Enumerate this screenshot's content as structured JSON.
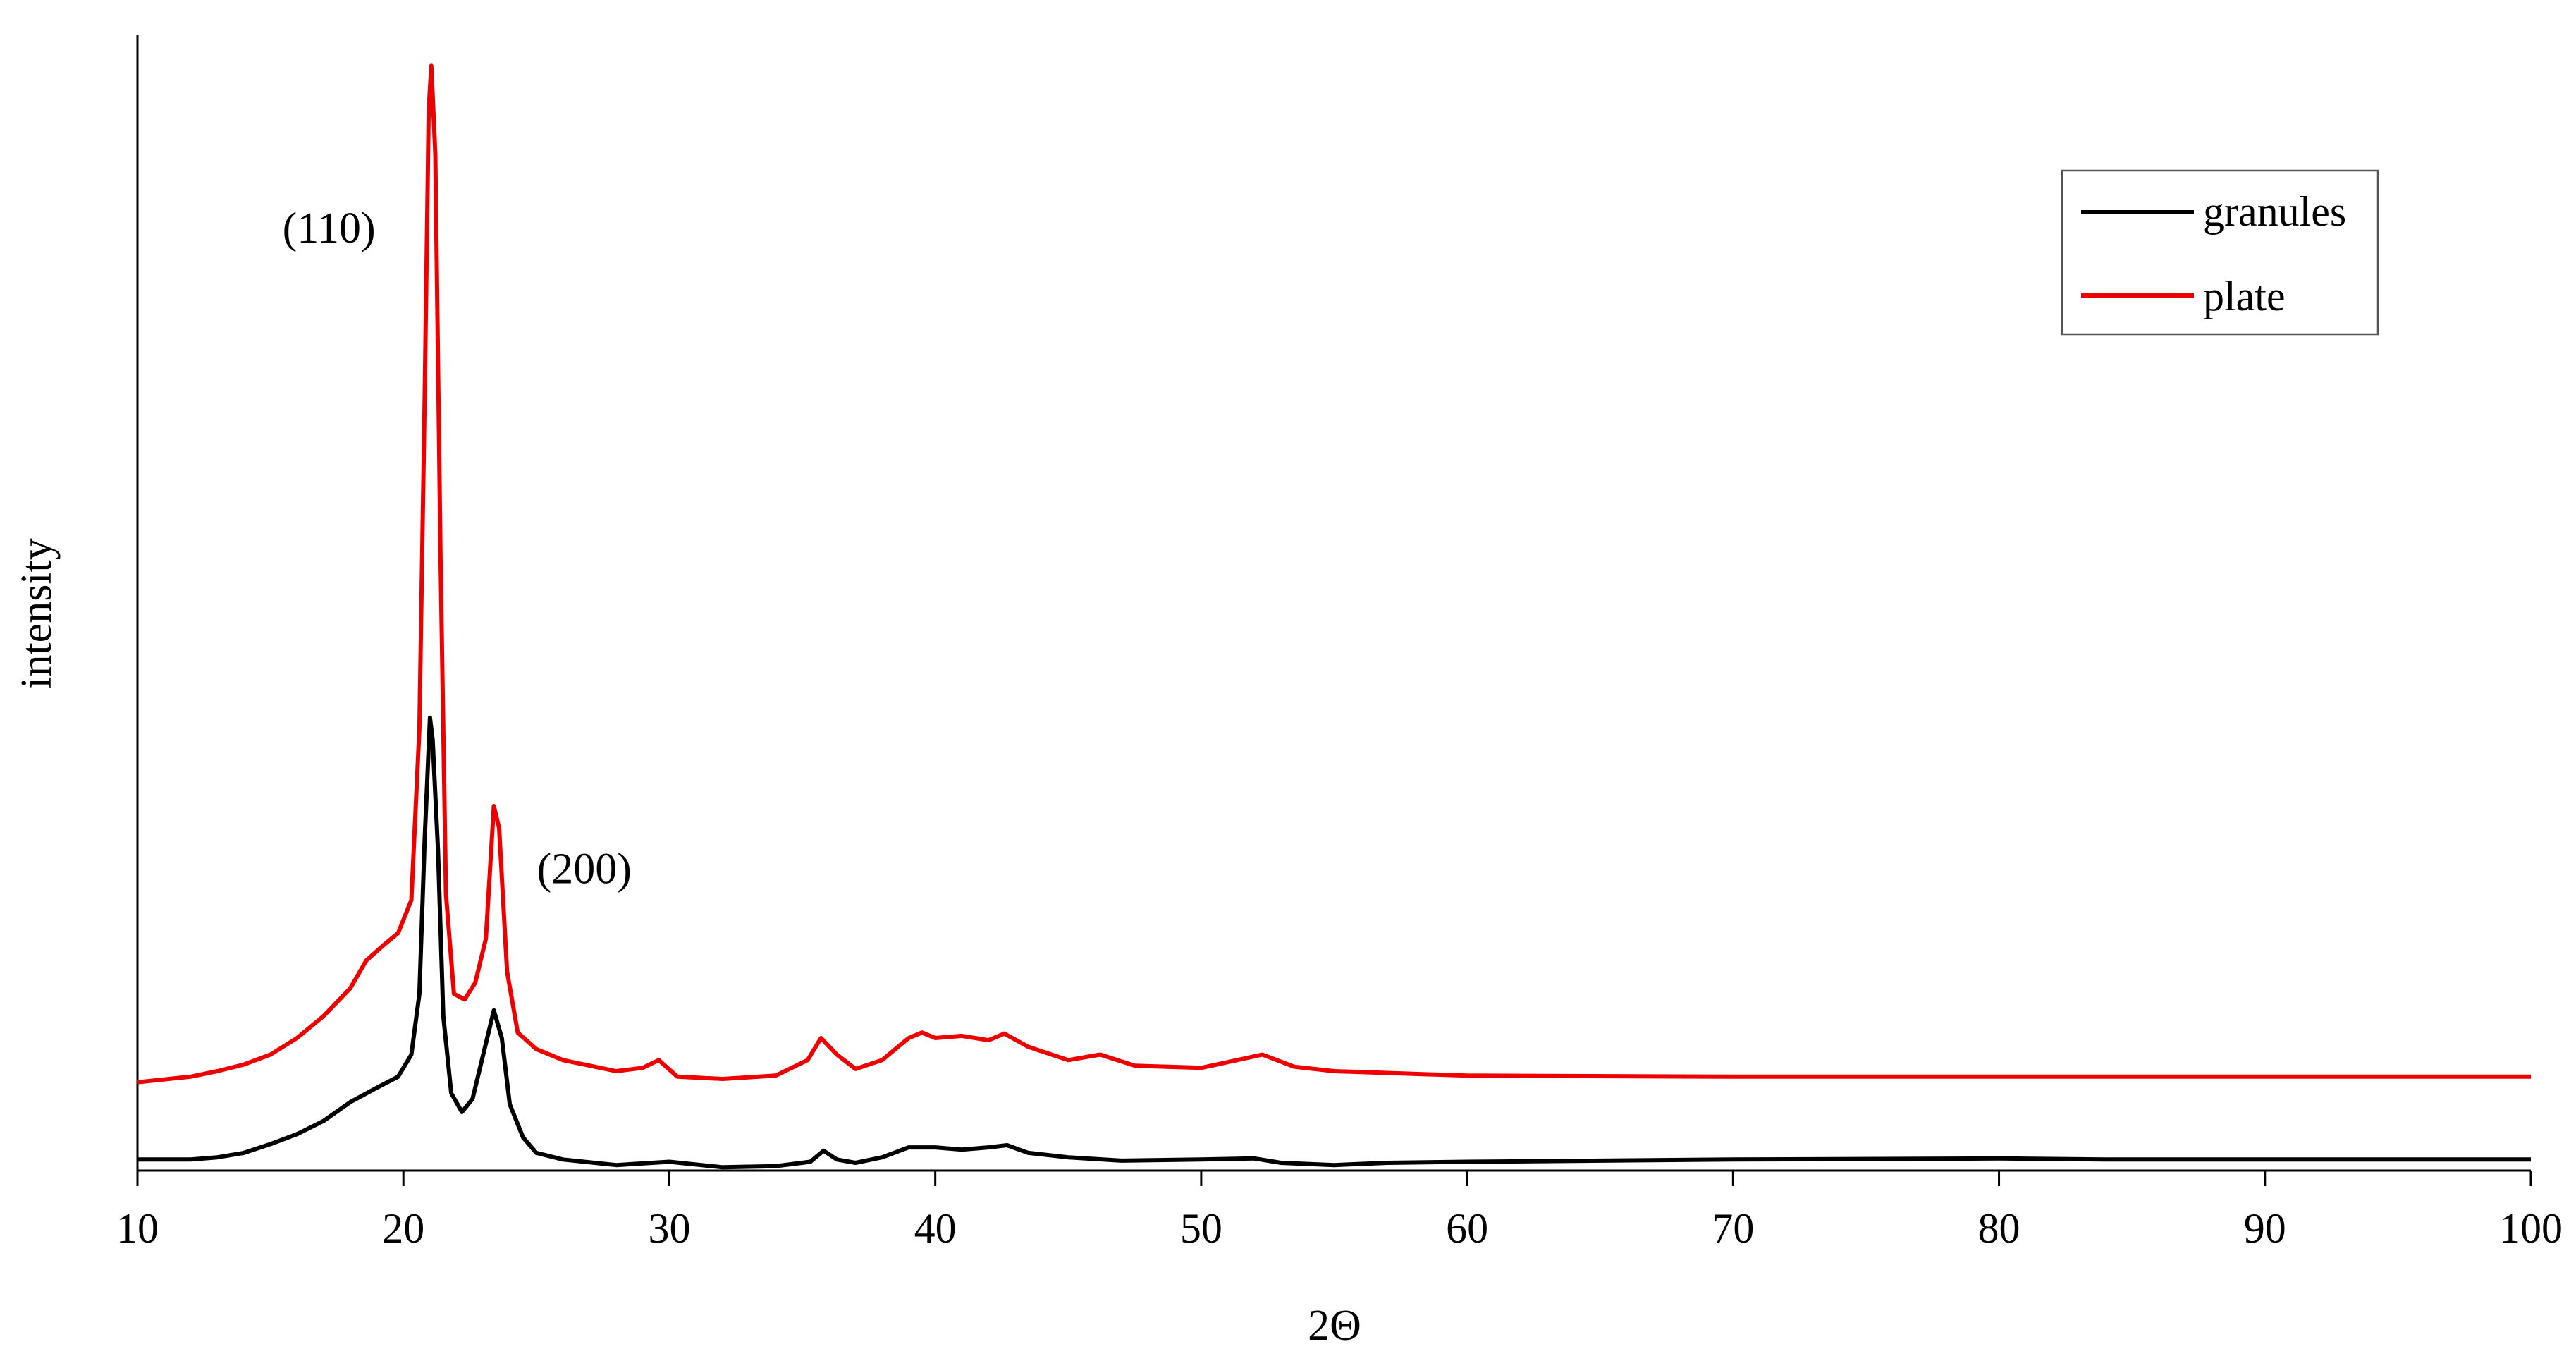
{
  "chart_data": {
    "type": "line",
    "title": "",
    "xlabel": "2Θ",
    "ylabel": "intensity",
    "xlim": [
      10,
      100
    ],
    "ylim": [
      0,
      105
    ],
    "x_ticks": [
      10,
      20,
      30,
      40,
      50,
      60,
      70,
      80,
      90,
      100
    ],
    "y_ticks_shown": false,
    "grid": false,
    "legend_position": "top-right",
    "annotations": [
      {
        "text": "(110)",
        "x": 17.2,
        "y": 84
      },
      {
        "text": "(200)",
        "x": 26.8,
        "y": 26
      }
    ],
    "series": [
      {
        "name": "granules",
        "color": "#000000",
        "x": [
          10,
          12,
          13,
          14,
          15,
          16,
          17,
          18,
          19,
          19.8,
          20.3,
          20.6,
          20.8,
          21.0,
          21.1,
          21.3,
          21.5,
          21.8,
          22.2,
          22.6,
          23.0,
          23.4,
          23.7,
          24.0,
          24.5,
          25,
          26,
          28,
          30,
          32,
          34,
          35.3,
          35.8,
          36.3,
          37,
          38,
          39,
          40,
          41,
          42,
          42.7,
          43.5,
          45,
          47,
          50,
          52,
          53,
          55,
          57,
          60,
          70,
          80,
          84,
          90,
          100
        ],
        "values": [
          1.0,
          1.0,
          1.2,
          1.6,
          2.4,
          3.3,
          4.5,
          6.2,
          7.5,
          8.5,
          10.5,
          16.0,
          30.0,
          41.0,
          39.0,
          29.0,
          14.0,
          7.0,
          5.3,
          6.5,
          10.5,
          14.5,
          12.0,
          6.0,
          3.0,
          1.6,
          1.0,
          0.5,
          0.8,
          0.3,
          0.4,
          0.8,
          1.8,
          1.0,
          0.7,
          1.2,
          2.1,
          2.1,
          1.9,
          2.1,
          2.3,
          1.6,
          1.2,
          0.9,
          1.0,
          1.1,
          0.7,
          0.5,
          0.7,
          0.8,
          1.0,
          1.1,
          1.0,
          1.0,
          1.0
        ]
      },
      {
        "name": "plate",
        "color": "#ee0000",
        "x": [
          10,
          12,
          13,
          14,
          15,
          16,
          17,
          18,
          18.6,
          19.3,
          19.8,
          20.3,
          20.6,
          20.8,
          20.95,
          21.05,
          21.2,
          21.4,
          21.6,
          21.9,
          22.3,
          22.7,
          23.1,
          23.4,
          23.6,
          23.9,
          24.3,
          25,
          26,
          28,
          29,
          29.6,
          30.3,
          32,
          34,
          35.2,
          35.7,
          36.3,
          37,
          38,
          39,
          39.5,
          40,
          41,
          42,
          42.6,
          43.5,
          45,
          46.2,
          47.5,
          50,
          52.3,
          53.5,
          55,
          60,
          70,
          80,
          90,
          100
        ],
        "values": [
          8.0,
          8.5,
          9.0,
          9.6,
          10.5,
          12.0,
          14.0,
          16.5,
          19.0,
          20.5,
          21.5,
          24.5,
          40.0,
          70.0,
          96.0,
          100.0,
          92.0,
          55.0,
          25.0,
          16.0,
          15.5,
          17.0,
          21.0,
          33.0,
          31.0,
          18.0,
          12.5,
          11.0,
          10.0,
          9.0,
          9.3,
          10.0,
          8.5,
          8.3,
          8.6,
          10.0,
          12.0,
          10.5,
          9.2,
          10.0,
          12.0,
          12.5,
          12.0,
          12.2,
          11.8,
          12.4,
          11.2,
          10.0,
          10.5,
          9.5,
          9.3,
          10.5,
          9.4,
          9.0,
          8.6,
          8.5,
          8.5,
          8.5,
          8.5
        ]
      }
    ]
  }
}
